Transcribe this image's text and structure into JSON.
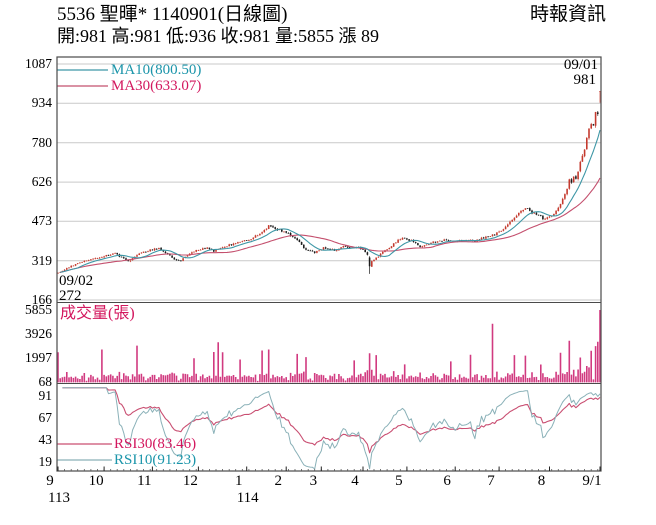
{
  "header": {
    "title": "5536  聖暉* 1140901(日線圖)",
    "brand": "時報資訊",
    "ohlc_summary": "開:981 高:981 低:936 收:981 量:5855 漲 89"
  },
  "price_panel": {
    "ma10_label": "MA10(800.50)",
    "ma30_label": "MA30(633.07)",
    "start_date_label": "09/02",
    "start_price_label": "272",
    "end_date_label": "09/01",
    "end_price_label": "981"
  },
  "volume_panel": {
    "label": "成交量(張)"
  },
  "rsi_panel": {
    "rsi30_label": "RSI30(83.46)",
    "rsi10_label": "RSI10(91.23)"
  },
  "colors": {
    "up_candle": "#c43a2e",
    "down_candle": "#1c1c1c",
    "ma10_line": "#3e97a6",
    "ma30_line": "#c4506e",
    "rsi10_line": "#8ab1b8",
    "rsi30_line": "#c94f72",
    "volume_bar": "#d13a80",
    "legend_teal": "#1b95aa",
    "legend_crimson": "#d3175e",
    "grid": "#c9c9c9",
    "border": "#4a4a4a",
    "text": "#000000"
  },
  "chart_data": {
    "type": "candlestick",
    "title": "5536 聖暉* 1140901(日線圖)",
    "panels": [
      "price+MA10+MA30",
      "volume",
      "RSI10+RSI30"
    ],
    "days": 248,
    "seed": 1140901,
    "price_axis": {
      "ticks": [
        1087,
        934,
        780,
        626,
        473,
        319,
        166
      ],
      "min": 166,
      "max": 1087
    },
    "volume_axis": {
      "ticks": [
        5855,
        3926,
        1997,
        68
      ],
      "min": 68,
      "max": 5855
    },
    "rsi_axis": {
      "ticks": [
        91,
        67,
        43,
        19
      ],
      "min": 0,
      "max": 100
    },
    "x_axis": {
      "month_ticks": [
        {
          "label": "9",
          "day": 0
        },
        {
          "label": "10",
          "day": 21
        },
        {
          "label": "11",
          "day": 43
        },
        {
          "label": "12",
          "day": 64
        },
        {
          "label": "1",
          "day": 86
        },
        {
          "label": "2",
          "day": 104
        },
        {
          "label": "3",
          "day": 120
        },
        {
          "label": "4",
          "day": 139
        },
        {
          "label": "5",
          "day": 159
        },
        {
          "label": "6",
          "day": 181
        },
        {
          "label": "7",
          "day": 201
        },
        {
          "label": "8",
          "day": 224
        },
        {
          "label": "9/1",
          "day": 247
        }
      ],
      "year_ticks": [
        {
          "label": "113",
          "day": 0
        },
        {
          "label": "114",
          "day": 86
        }
      ]
    },
    "first_day": {
      "date": "09/02",
      "close": 272
    },
    "last_day": {
      "date": "09/01",
      "open": 981,
      "high": 981,
      "low": 936,
      "close": 981,
      "volume": 5855,
      "change": 89
    },
    "indicators": {
      "ma10_last": 800.5,
      "ma30_last": 633.07,
      "rsi10_last": 91.23,
      "rsi30_last": 83.46
    },
    "close_keyframes": [
      [
        0,
        272
      ],
      [
        3,
        286
      ],
      [
        8,
        305
      ],
      [
        14,
        322
      ],
      [
        20,
        332
      ],
      [
        25,
        348
      ],
      [
        26,
        352
      ],
      [
        28,
        338
      ],
      [
        32,
        318
      ],
      [
        37,
        345
      ],
      [
        42,
        362
      ],
      [
        46,
        370
      ],
      [
        49,
        352
      ],
      [
        53,
        325
      ],
      [
        56,
        320
      ],
      [
        60,
        348
      ],
      [
        64,
        362
      ],
      [
        68,
        370
      ],
      [
        71,
        358
      ],
      [
        76,
        375
      ],
      [
        82,
        392
      ],
      [
        88,
        405
      ],
      [
        93,
        428
      ],
      [
        96,
        458
      ],
      [
        100,
        442
      ],
      [
        105,
        424
      ],
      [
        109,
        398
      ],
      [
        113,
        360
      ],
      [
        117,
        352
      ],
      [
        121,
        368
      ],
      [
        126,
        360
      ],
      [
        130,
        374
      ],
      [
        134,
        372
      ],
      [
        138,
        368
      ],
      [
        140,
        356
      ],
      [
        141,
        344
      ],
      [
        142,
        298
      ],
      [
        143,
        315
      ],
      [
        146,
        338
      ],
      [
        150,
        365
      ],
      [
        154,
        392
      ],
      [
        157,
        408
      ],
      [
        161,
        396
      ],
      [
        165,
        374
      ],
      [
        169,
        386
      ],
      [
        173,
        396
      ],
      [
        177,
        403
      ],
      [
        181,
        392
      ],
      [
        186,
        402
      ],
      [
        190,
        396
      ],
      [
        194,
        410
      ],
      [
        198,
        418
      ],
      [
        202,
        438
      ],
      [
        206,
        472
      ],
      [
        210,
        508
      ],
      [
        213,
        525
      ],
      [
        216,
        508
      ],
      [
        219,
        498
      ],
      [
        222,
        480
      ],
      [
        224,
        492
      ],
      [
        227,
        512
      ],
      [
        230,
        556
      ],
      [
        232,
        600
      ],
      [
        233,
        638
      ],
      [
        234,
        622
      ],
      [
        235,
        650
      ],
      [
        236,
        636
      ],
      [
        237,
        668
      ],
      [
        238,
        700
      ],
      [
        239,
        726
      ],
      [
        240,
        758
      ],
      [
        241,
        796
      ],
      [
        242,
        828
      ],
      [
        243,
        856
      ],
      [
        244,
        845
      ],
      [
        245,
        906
      ],
      [
        246,
        892
      ],
      [
        247,
        981
      ]
    ],
    "pinned_closes": [
      [
        0,
        272
      ],
      [
        246,
        892
      ]
    ],
    "special_days": {
      "142": {
        "open": 332,
        "high": 337,
        "low": 268,
        "close": 298
      },
      "247": {
        "open": 981,
        "high": 981,
        "low": 936,
        "close": 981
      }
    },
    "volume_spikes": [
      [
        0,
        2400
      ],
      [
        20,
        2600
      ],
      [
        36,
        2900
      ],
      [
        62,
        2000
      ],
      [
        71,
        2600
      ],
      [
        73,
        3300
      ],
      [
        75,
        2400
      ],
      [
        83,
        1800
      ],
      [
        93,
        2500
      ],
      [
        96,
        2700
      ],
      [
        109,
        2400
      ],
      [
        113,
        2100
      ],
      [
        135,
        1700
      ],
      [
        142,
        2300
      ],
      [
        145,
        2200
      ],
      [
        158,
        1500
      ],
      [
        179,
        1800
      ],
      [
        188,
        2200
      ],
      [
        198,
        4700
      ],
      [
        208,
        2300
      ],
      [
        213,
        2100
      ],
      [
        220,
        1500
      ],
      [
        229,
        2300
      ],
      [
        233,
        3300
      ],
      [
        238,
        2100
      ],
      [
        243,
        2600
      ],
      [
        245,
        2900
      ],
      [
        246,
        3400
      ]
    ]
  }
}
